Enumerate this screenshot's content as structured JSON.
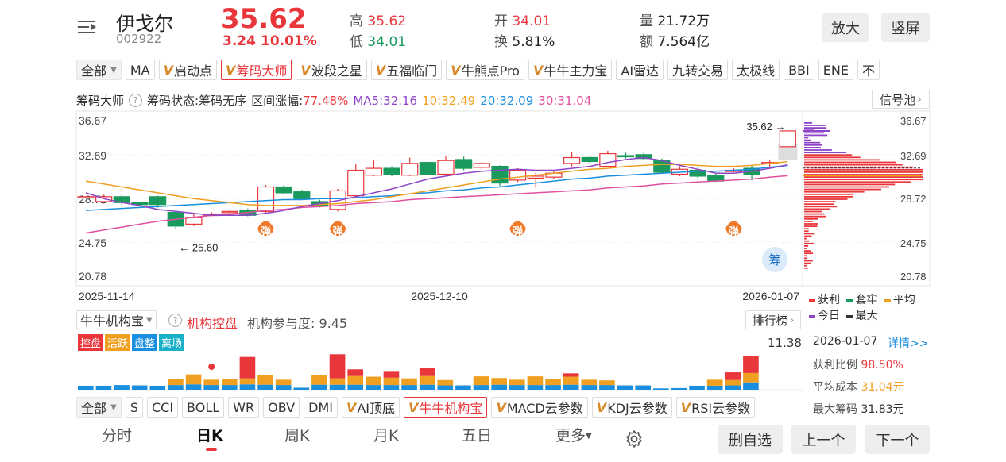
{
  "header": {
    "name": "伊戈尔",
    "code": "002922",
    "price": "35.62",
    "change": "3.24",
    "change_pct": "10.01%",
    "high_label": "高",
    "high": "35.62",
    "low_label": "低",
    "low": "34.01",
    "open_label": "开",
    "open": "34.01",
    "turnover_label": "换",
    "turnover": "5.81%",
    "volume_label": "量",
    "volume": "21.72万",
    "amount_label": "额",
    "amount": "7.564亿",
    "zoom_btn": "放大",
    "portrait_btn": "竖屏"
  },
  "indicator_tabs": {
    "all": "全部",
    "items": [
      "MA",
      "启动点",
      "筹码大师",
      "波段之星",
      "五福临门",
      "牛熊点Pro",
      "牛牛主力宝",
      "AI雷达",
      "九转交易",
      "太极线",
      "BBI",
      "ENE",
      "不"
    ]
  },
  "main_chart": {
    "title": "筹码大师",
    "state": "筹码状态:筹码无序",
    "range_label": "区间涨幅:",
    "range_value": "77.48%",
    "ma5": "MA5:32.16",
    "ma10": "10:32.49",
    "ma20": "20:32.09",
    "ma30": "30:31.04",
    "signal_btn": "信号池",
    "y_left": [
      "36.67",
      "32.69",
      "28.72",
      "24.75",
      "20.78"
    ],
    "y_right": [
      "36.67",
      "32.69",
      "28.72",
      "24.75",
      "20.78"
    ],
    "dates": [
      "2025-11-14",
      "2025-12-10",
      "2026-01-07"
    ],
    "high_marker": "35.62",
    "low_marker": "25.60",
    "signal_char": "弹",
    "chip_char": "筹",
    "legend": {
      "profit": "获利",
      "trapped": "套牢",
      "avg": "平均",
      "today": "今日",
      "max": "最大"
    },
    "colors": {
      "up": "#e8363b",
      "down": "#1a9a5c",
      "ma5": "#8e44c8",
      "ma10": "#f0a020",
      "ma20": "#1a8fe0",
      "ma30": "#e050a0"
    }
  },
  "chart_data": {
    "type": "candlestick",
    "ylim": [
      20.78,
      36.67
    ],
    "candles": [
      [
        28.9,
        28.9,
        28.9,
        28.9
      ],
      [
        28.4,
        28.9,
        28.2,
        29.1
      ],
      [
        28.9,
        28.3,
        28.0,
        29.1
      ],
      [
        28.3,
        28.1,
        27.9,
        28.4
      ],
      [
        28.9,
        28.1,
        27.8,
        29.0
      ],
      [
        27.3,
        25.9,
        25.6,
        27.4
      ],
      [
        26.1,
        26.8,
        25.9,
        27.2
      ],
      [
        27.1,
        27.1,
        26.9,
        27.3
      ],
      [
        27.3,
        27.4,
        27.0,
        27.6
      ],
      [
        27.5,
        27.0,
        26.9,
        27.7
      ],
      [
        27.4,
        29.9,
        27.2,
        30.1
      ],
      [
        29.9,
        29.3,
        29.1,
        30.1
      ],
      [
        29.4,
        28.7,
        28.6,
        29.6
      ],
      [
        28.4,
        28.0,
        27.8,
        28.6
      ],
      [
        27.6,
        29.5,
        27.4,
        29.7
      ],
      [
        29.0,
        31.6,
        28.8,
        32.2
      ],
      [
        31.1,
        31.8,
        31.0,
        32.6
      ],
      [
        31.8,
        31.2,
        31.0,
        32.0
      ],
      [
        31.1,
        32.3,
        31.0,
        32.9
      ],
      [
        32.4,
        31.2,
        31.1,
        32.5
      ],
      [
        31.2,
        32.6,
        31.0,
        33.1
      ],
      [
        32.7,
        31.8,
        31.6,
        33.0
      ],
      [
        31.9,
        32.3,
        31.7,
        32.4
      ],
      [
        32.0,
        30.3,
        30.0,
        32.1
      ],
      [
        30.6,
        31.6,
        30.4,
        31.8
      ],
      [
        30.8,
        31.0,
        29.8,
        31.4
      ],
      [
        30.9,
        31.3,
        30.7,
        31.5
      ],
      [
        32.3,
        32.9,
        32.0,
        33.5
      ],
      [
        32.9,
        32.5,
        32.3,
        33.0
      ],
      [
        32.0,
        33.3,
        32.0,
        33.6
      ],
      [
        33.1,
        33.0,
        32.8,
        33.4
      ],
      [
        33.2,
        32.8,
        32.7,
        33.4
      ],
      [
        32.6,
        31.4,
        31.3,
        32.8
      ],
      [
        31.2,
        31.7,
        31.0,
        32.0
      ],
      [
        31.6,
        31.0,
        30.8,
        31.9
      ],
      [
        31.1,
        30.5,
        30.4,
        31.3
      ],
      [
        31.6,
        31.6,
        31.4,
        31.8
      ],
      [
        31.8,
        31.2,
        30.6,
        32.1
      ],
      [
        32.3,
        32.4,
        31.9,
        32.6
      ],
      [
        34.01,
        35.62,
        34.01,
        35.62
      ]
    ],
    "ma5": [
      29.3,
      28.7,
      28.3,
      28.0,
      27.6,
      27.4,
      27.2,
      27.0,
      27.0,
      27.0,
      27.2,
      27.5,
      27.9,
      28.2,
      28.5,
      28.9,
      29.3,
      29.7,
      30.2,
      30.7,
      31.0,
      31.3,
      31.5,
      31.6,
      31.7,
      31.6,
      31.6,
      31.8,
      32.0,
      32.4,
      32.7,
      32.9,
      32.6,
      32.1,
      31.7,
      31.3,
      31.3,
      31.5,
      31.8,
      32.16
    ],
    "ma10": [
      30.5,
      30.2,
      29.9,
      29.6,
      29.3,
      29.0,
      28.7,
      28.5,
      28.3,
      28.1,
      28.0,
      28.0,
      28.0,
      28.1,
      28.2,
      28.4,
      28.6,
      28.9,
      29.2,
      29.5,
      29.8,
      30.1,
      30.4,
      30.7,
      30.9,
      31.1,
      31.3,
      31.5,
      31.7,
      31.8,
      32.0,
      32.1,
      32.2,
      32.2,
      32.1,
      32.0,
      32.0,
      32.1,
      32.3,
      32.49
    ],
    "ma20": [
      27.5,
      27.6,
      27.7,
      27.8,
      27.9,
      28.0,
      28.1,
      28.2,
      28.3,
      28.4,
      28.5,
      28.6,
      28.6,
      28.7,
      28.7,
      28.8,
      28.9,
      29.0,
      29.2,
      29.3,
      29.5,
      29.6,
      29.8,
      29.9,
      30.1,
      30.3,
      30.5,
      30.7,
      30.8,
      31.0,
      31.1,
      31.2,
      31.3,
      31.4,
      31.5,
      31.5,
      31.6,
      31.7,
      31.9,
      32.09
    ],
    "ma30": [
      25.2,
      25.5,
      25.8,
      26.1,
      26.4,
      26.6,
      26.8,
      27.0,
      27.1,
      27.3,
      27.5,
      27.6,
      27.8,
      27.9,
      28.0,
      28.2,
      28.3,
      28.4,
      28.6,
      28.7,
      28.8,
      28.9,
      29.0,
      29.1,
      29.2,
      29.3,
      29.4,
      29.5,
      29.6,
      29.8,
      29.9,
      30.0,
      30.2,
      30.3,
      30.4,
      30.5,
      30.6,
      30.7,
      30.9,
      31.04
    ],
    "signals": [
      10,
      14,
      24,
      36
    ]
  },
  "chip_dist": {
    "profit_ratio_label": "获利比例",
    "profit_ratio": "98.50%",
    "avg_cost_label": "平均成本",
    "avg_cost": "31.04元",
    "max_chip_label": "最大筹码",
    "max_chip": "31.83元",
    "date": "2026-01-07",
    "detail": "详情>>"
  },
  "sub_panel": {
    "name": "牛牛机构宝",
    "label": "机构控盘",
    "participation": "机构参与度: 9.45",
    "rank_btn": "排行榜",
    "max_value": "11.38",
    "badges": [
      "控盘",
      "活跃",
      "盘整",
      "离场"
    ],
    "bars": [
      [
        0,
        0,
        1.2
      ],
      [
        0,
        0,
        1.2
      ],
      [
        0,
        0,
        1.4
      ],
      [
        0,
        0,
        1.3
      ],
      [
        0,
        0,
        1.2
      ],
      [
        0,
        1.8,
        1.4
      ],
      [
        0,
        3.0,
        1.6
      ],
      [
        0,
        1.6,
        1.4
      ],
      [
        0,
        1.8,
        1.4
      ],
      [
        6.4,
        1.8,
        1.6
      ],
      [
        0,
        3.0,
        1.5
      ],
      [
        0,
        1.6,
        1.4
      ],
      [
        0,
        0,
        0.6
      ],
      [
        0,
        3.0,
        1.5
      ],
      [
        7.2,
        1.9,
        1.5
      ],
      [
        2.0,
        2.6,
        1.5
      ],
      [
        0,
        2.5,
        1.4
      ],
      [
        2.0,
        2.2,
        1.4
      ],
      [
        0,
        2.0,
        1.4
      ],
      [
        2.4,
        2.6,
        1.5
      ],
      [
        0,
        1.6,
        1.3
      ],
      [
        0,
        0,
        1.3
      ],
      [
        0,
        2.6,
        1.4
      ],
      [
        0,
        2.0,
        1.5
      ],
      [
        0,
        1.6,
        1.4
      ],
      [
        0,
        2.6,
        1.4
      ],
      [
        0,
        1.7,
        1.4
      ],
      [
        1.0,
        2.4,
        1.5
      ],
      [
        0,
        1.6,
        1.4
      ],
      [
        0,
        1.4,
        1.4
      ],
      [
        0,
        0,
        1.3
      ],
      [
        0,
        0,
        1.3
      ],
      [
        0,
        0,
        0.4
      ],
      [
        0,
        0,
        0.5
      ],
      [
        0,
        0,
        1.2
      ],
      [
        0,
        1.8,
        1.2
      ],
      [
        2.3,
        1.6,
        1.3
      ],
      [
        5.0,
        2.8,
        2.2
      ],
      [
        0,
        0,
        0
      ],
      [
        0,
        0,
        0
      ]
    ]
  },
  "bottom_tabs": {
    "all": "全部",
    "items": [
      "S",
      "CCI",
      "BOLL",
      "WR",
      "OBV",
      "DMI",
      "AI顶底",
      "牛牛机构宝",
      "MACD云参数",
      "KDJ云参数",
      "RSI云参数"
    ]
  },
  "nav": {
    "fen": "分时",
    "ri": "日K",
    "zhou": "周K",
    "yue": "月K",
    "wu": "五日",
    "more": "更多",
    "delete": "删自选",
    "prev": "上一个",
    "next": "下一个"
  }
}
